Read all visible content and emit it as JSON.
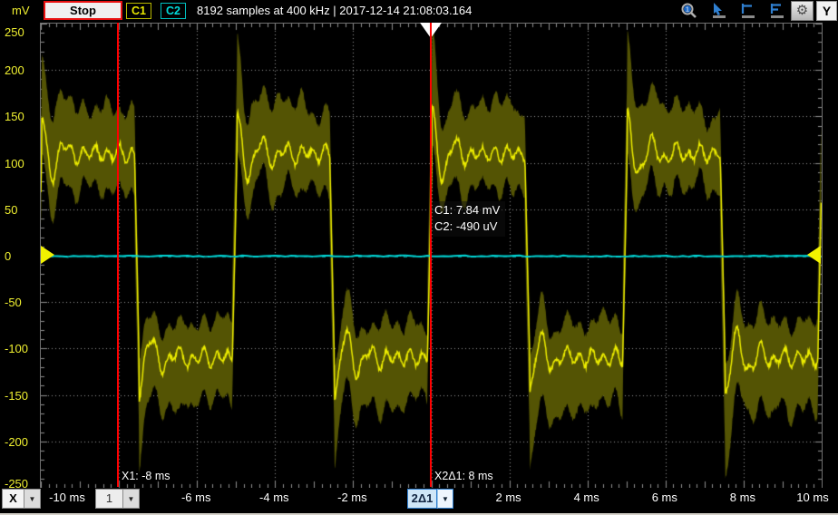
{
  "top_bar": {
    "unit_label": "mV",
    "stop_button_label": "Stop",
    "channel_badges": [
      {
        "label": "C1",
        "color": "#e8e800"
      },
      {
        "label": "C2",
        "color": "#00dcdc"
      }
    ],
    "status_text": "8192 samples at 400 kHz | 2017-12-14 21:08:03.164",
    "tool_icons": [
      "zoom-icon",
      "pointer-tool-icon",
      "single-cursor-icon",
      "dual-cursor-icon",
      "settings-gear-icon"
    ],
    "y_button_label": "Y"
  },
  "bottom_bar": {
    "x_button_label": "X",
    "cursor1_dropdown_label": "1",
    "cursor2_dropdown_label": "2Δ1"
  },
  "cursor_labels": {
    "x1": "X1: -8 ms",
    "x2": "X2Δ1: 8 ms"
  },
  "readout": {
    "line1": "C1: 7.84 mV",
    "line2": "C2: -490 uV"
  },
  "chart_data": {
    "type": "line",
    "title": "",
    "x_unit": "ms",
    "y_unit": "mV",
    "x_range": [
      -10,
      10
    ],
    "y_range": [
      -250,
      250
    ],
    "x_grid_step_ms": 2,
    "y_grid_step_mV": 50,
    "grid": true,
    "legend": false,
    "x_tick_labels": [
      {
        "t": -10,
        "label": "-10 ms"
      },
      {
        "t": -6,
        "label": "-6 ms"
      },
      {
        "t": -4,
        "label": "-4 ms"
      },
      {
        "t": -2,
        "label": "-2 ms"
      },
      {
        "t": 2,
        "label": "2 ms"
      },
      {
        "t": 4,
        "label": "4 ms"
      },
      {
        "t": 6,
        "label": "6 ms"
      },
      {
        "t": 8,
        "label": "8 ms"
      },
      {
        "t": 10,
        "label": "10 ms"
      }
    ],
    "y_tick_labels": [
      "250",
      "200",
      "150",
      "100",
      "50",
      "0",
      "-50",
      "-100",
      "-150",
      "-200",
      "-250"
    ],
    "cursors": {
      "x1_ms": -8,
      "x2_ms": 0,
      "delta_ms": 8,
      "color": "#ff0000"
    },
    "trigger_marker_ms": 0,
    "series": [
      {
        "name": "C1",
        "shape": "square",
        "color": "#ecec00",
        "envelope_color": "#545404",
        "amplitude_mV": 110,
        "period_ms": 5,
        "rising_edges_ms": [
          -10.1,
          -5.1,
          -0.1,
          4.9,
          9.9
        ],
        "falling_edges_ms": [
          -7.6,
          -2.6,
          2.4,
          7.4
        ],
        "ringing_overshoot_mV": 46,
        "plateau_ripple_mV": 8,
        "envelope_outer_spread_mV": 50,
        "envelope_inner_spread_mV": 38,
        "envelope_transition_peak_mV": 195
      },
      {
        "name": "C2",
        "shape": "flat",
        "color": "#00d8d8",
        "level_mV": -0.49
      }
    ]
  }
}
